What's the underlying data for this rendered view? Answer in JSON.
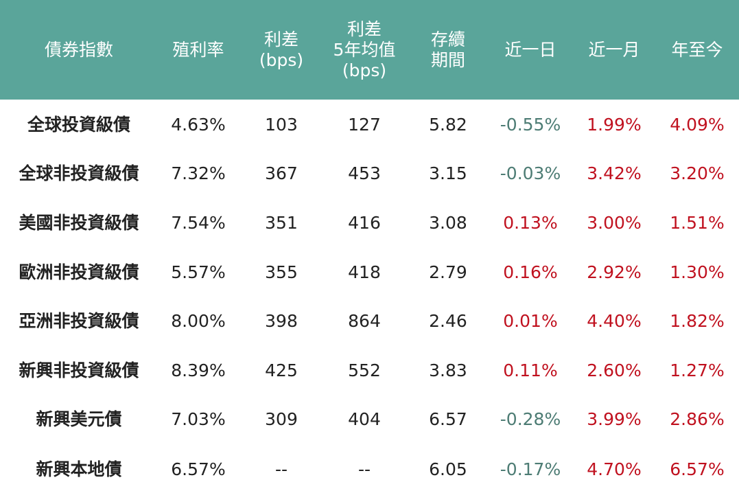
{
  "colors": {
    "header_bg": "#5aa59a",
    "negative": "#4d7c74",
    "positive": "#c0111f"
  },
  "chart_data": {
    "type": "table",
    "columns": [
      [
        "債券指數"
      ],
      [
        "殖利率"
      ],
      [
        "利差",
        "(bps)"
      ],
      [
        "利差",
        "5年均值",
        "(bps)"
      ],
      [
        "存續",
        "期間"
      ],
      [
        "近一日"
      ],
      [
        "近一月"
      ],
      [
        "年至今"
      ]
    ],
    "rows": [
      {
        "cells": [
          "全球投資級債",
          "4.63%",
          "103",
          "127",
          "5.82",
          "-0.55%",
          "1.99%",
          "4.09%"
        ],
        "tones": [
          "",
          "",
          "",
          "",
          "",
          "neg",
          "pos",
          "pos"
        ]
      },
      {
        "cells": [
          "全球非投資級債",
          "7.32%",
          "367",
          "453",
          "3.15",
          "-0.03%",
          "3.42%",
          "3.20%"
        ],
        "tones": [
          "",
          "",
          "",
          "",
          "",
          "neg",
          "pos",
          "pos"
        ]
      },
      {
        "cells": [
          "美國非投資級債",
          "7.54%",
          "351",
          "416",
          "3.08",
          "0.13%",
          "3.00%",
          "1.51%"
        ],
        "tones": [
          "",
          "",
          "",
          "",
          "",
          "pos",
          "pos",
          "pos"
        ]
      },
      {
        "cells": [
          "歐洲非投資級債",
          "5.57%",
          "355",
          "418",
          "2.79",
          "0.16%",
          "2.92%",
          "1.30%"
        ],
        "tones": [
          "",
          "",
          "",
          "",
          "",
          "pos",
          "pos",
          "pos"
        ]
      },
      {
        "cells": [
          "亞洲非投資級債",
          "8.00%",
          "398",
          "864",
          "2.46",
          "0.01%",
          "4.40%",
          "1.82%"
        ],
        "tones": [
          "",
          "",
          "",
          "",
          "",
          "pos",
          "pos",
          "pos"
        ]
      },
      {
        "cells": [
          "新興非投資級債",
          "8.39%",
          "425",
          "552",
          "3.83",
          "0.11%",
          "2.60%",
          "1.27%"
        ],
        "tones": [
          "",
          "",
          "",
          "",
          "",
          "pos",
          "pos",
          "pos"
        ]
      },
      {
        "cells": [
          "新興美元債",
          "7.03%",
          "309",
          "404",
          "6.57",
          "-0.28%",
          "3.99%",
          "2.86%"
        ],
        "tones": [
          "",
          "",
          "",
          "",
          "",
          "neg",
          "pos",
          "pos"
        ]
      },
      {
        "cells": [
          "新興本地債",
          "6.57%",
          "--",
          "--",
          "6.05",
          "-0.17%",
          "4.70%",
          "6.57%"
        ],
        "tones": [
          "",
          "",
          "",
          "",
          "",
          "neg",
          "pos",
          "pos"
        ]
      }
    ]
  }
}
